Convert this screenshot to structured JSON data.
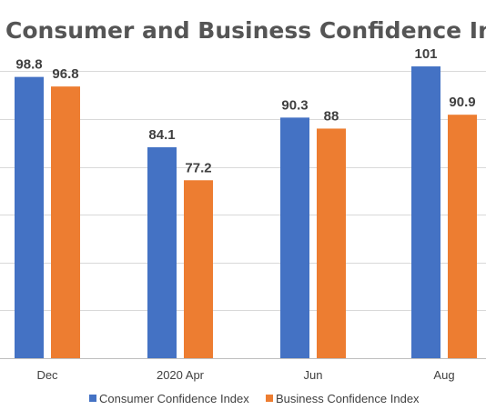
{
  "chart_data": {
    "type": "bar",
    "title": "Consumer and Business Confidence Indexes",
    "xlabel": "",
    "ylabel": "",
    "categories": [
      "Dec",
      "2020 Apr",
      "Jun",
      "Aug"
    ],
    "series": [
      {
        "name": "Consumer Confidence Index",
        "color": "#4472c4",
        "values": [
          98.8,
          84.1,
          90.3,
          101
        ]
      },
      {
        "name": "Business Confidence Index",
        "color": "#ed7d31",
        "values": [
          96.8,
          77.2,
          88,
          90.9
        ]
      }
    ],
    "ylim": [
      40,
      105
    ],
    "grid": true,
    "legend_position": "bottom"
  }
}
